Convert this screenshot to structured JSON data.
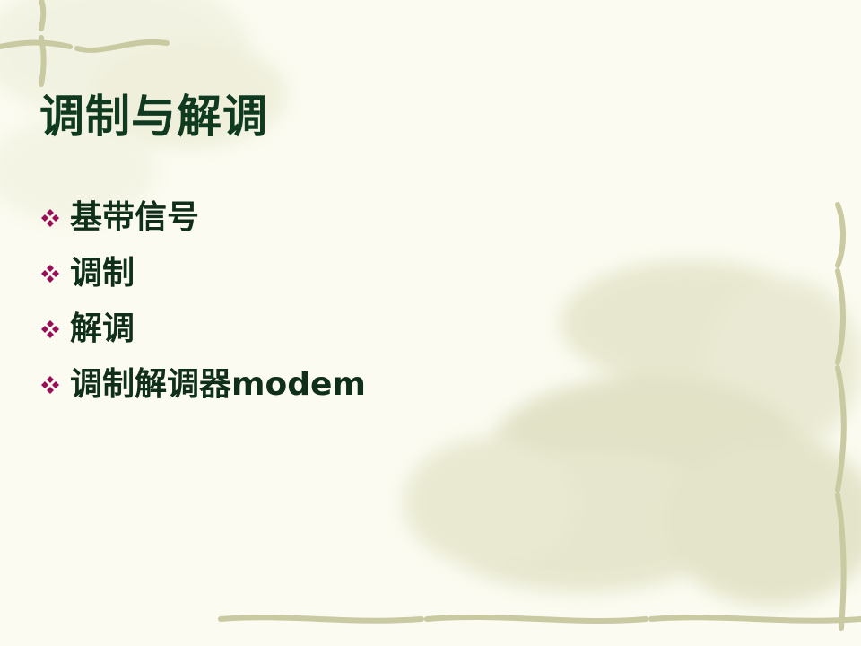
{
  "slide": {
    "title": "调制与解调",
    "bullets": [
      "基带信号",
      "调制",
      "解调",
      "调制解调器modem"
    ]
  },
  "theme": {
    "background": "#fbfbf1",
    "title_color": "#0f3a1f",
    "text_color": "#102f1a",
    "bullet_color": "#9a0d57",
    "decor_color": "#c9c9a2"
  },
  "icons": {
    "bullet": "four-diamond-bullet-icon",
    "background": "faded-flower-motif"
  }
}
